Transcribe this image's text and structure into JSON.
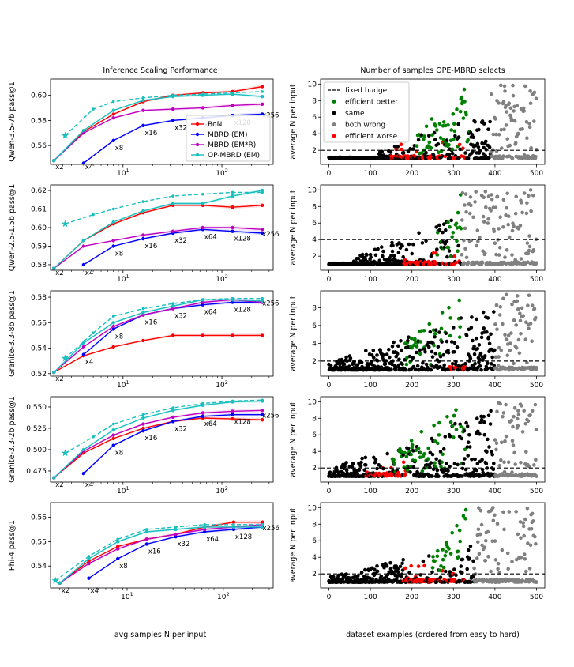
{
  "figure": {
    "left_title": "Inference Scaling Performance",
    "right_title": "Number of samples OPE-MBRD selects",
    "left_xlabel": "avg samples N per input",
    "right_xlabel": "dataset examples (ordered from easy to hard)",
    "right_ylabel": "average N per input"
  },
  "colors": {
    "bon": "#ff0000",
    "mbrd_em": "#0000ff",
    "mbrd_emr": "#c000c0",
    "op_mbrd": "#17bfbf",
    "green": "#008000",
    "black": "#000000",
    "gray": "#808080",
    "red": "#ff0000"
  },
  "legend_left": [
    "BoN",
    "MBRD (EM)",
    "MBRD (EM*R)",
    "OP-MBRD (EM)"
  ],
  "legend_right": [
    "fixed budget",
    "efficient better",
    "same",
    "both wrong",
    "efficient worse"
  ],
  "chart_data": [
    {
      "type": "line",
      "ylabel": "Qwen-3.5-7b pass@1",
      "ylim": [
        0.545,
        0.613
      ],
      "yticks": [
        0.56,
        0.58,
        0.6
      ],
      "xticks": [
        "10^1",
        "10^2"
      ],
      "series": [
        {
          "name": "BoN",
          "x": [
            2,
            4,
            8,
            16,
            32,
            64,
            128,
            256
          ],
          "values": [
            0.548,
            0.571,
            0.585,
            0.595,
            0.6,
            0.602,
            0.603,
            0.607
          ]
        },
        {
          "name": "MBRD (EM)",
          "x": [
            4,
            8,
            16,
            32,
            64,
            128,
            256
          ],
          "values": [
            0.546,
            0.564,
            0.576,
            0.58,
            0.582,
            0.584,
            0.585
          ]
        },
        {
          "name": "MBRD (EM*R)",
          "x": [
            2,
            4,
            8,
            16,
            32,
            64,
            128,
            256
          ],
          "values": [
            0.548,
            0.57,
            0.582,
            0.588,
            0.589,
            0.59,
            0.592,
            0.593
          ]
        },
        {
          "name": "OP-MBRD (EM)",
          "x": [
            2,
            4,
            8,
            16,
            32,
            64,
            128,
            256
          ],
          "values": [
            0.548,
            0.572,
            0.588,
            0.596,
            0.599,
            0.6,
            0.601,
            0.599
          ]
        },
        {
          "name": "OP-MBRD (EM) dashed",
          "x": [
            2.6,
            5,
            8,
            16,
            32,
            64,
            128,
            256
          ],
          "values": [
            0.568,
            0.589,
            0.595,
            0.598,
            0.6,
            0.601,
            0.602,
            0.603
          ]
        }
      ],
      "annotations": [
        "x2",
        "x4",
        "x8",
        "x16",
        "x32",
        "x64",
        "x128",
        "x256"
      ]
    },
    {
      "type": "line",
      "ylabel": "Qwen-2.5-1.5b pass@1",
      "ylim": [
        0.577,
        0.623
      ],
      "yticks": [
        0.58,
        0.59,
        0.6,
        0.61,
        0.62
      ],
      "xticks": [
        "10^1",
        "10^2"
      ],
      "series": [
        {
          "name": "BoN",
          "x": [
            2,
            4,
            8,
            16,
            32,
            64,
            128,
            256
          ],
          "values": [
            0.578,
            0.593,
            0.602,
            0.608,
            0.612,
            0.612,
            0.611,
            0.612
          ]
        },
        {
          "name": "MBRD (EM)",
          "x": [
            4,
            8,
            16,
            32,
            64,
            128,
            256
          ],
          "values": [
            0.58,
            0.59,
            0.594,
            0.597,
            0.599,
            0.598,
            0.597
          ]
        },
        {
          "name": "MBRD (EM*R)",
          "x": [
            2,
            4,
            8,
            16,
            32,
            64,
            128,
            256
          ],
          "values": [
            0.578,
            0.59,
            0.593,
            0.596,
            0.598,
            0.6,
            0.6,
            0.599
          ]
        },
        {
          "name": "OP-MBRD (EM)",
          "x": [
            2,
            4,
            8,
            16,
            32,
            64,
            128,
            256
          ],
          "values": [
            0.578,
            0.593,
            0.603,
            0.609,
            0.613,
            0.613,
            0.617,
            0.62
          ]
        },
        {
          "name": "OP-MBRD (EM) dashed",
          "x": [
            2.6,
            5,
            8,
            16,
            32,
            64,
            128,
            256
          ],
          "values": [
            0.602,
            0.607,
            0.61,
            0.614,
            0.617,
            0.618,
            0.619,
            0.619
          ]
        }
      ],
      "annotations": [
        "x2",
        "x4",
        "x8",
        "x16",
        "x32",
        "x64",
        "x128",
        "x256"
      ]
    },
    {
      "type": "line",
      "ylabel": "Granite-3.3-8b pass@1",
      "ylim": [
        0.518,
        0.585
      ],
      "yticks": [
        0.52,
        0.54,
        0.56,
        0.58
      ],
      "xticks": [
        "10^1",
        "10^2"
      ],
      "series": [
        {
          "name": "BoN",
          "x": [
            2,
            4,
            8,
            16,
            32,
            64,
            128,
            256
          ],
          "values": [
            0.521,
            0.534,
            0.541,
            0.546,
            0.55,
            0.55,
            0.55,
            0.55
          ]
        },
        {
          "name": "MBRD (EM)",
          "x": [
            4,
            8,
            16,
            32,
            64,
            128,
            256
          ],
          "values": [
            0.535,
            0.555,
            0.566,
            0.571,
            0.574,
            0.576,
            0.576
          ]
        },
        {
          "name": "MBRD (EM*R)",
          "x": [
            2,
            4,
            8,
            16,
            32,
            64,
            128,
            256
          ],
          "values": [
            0.521,
            0.541,
            0.557,
            0.566,
            0.571,
            0.576,
            0.578,
            0.576
          ]
        },
        {
          "name": "OP-MBRD (EM)",
          "x": [
            2,
            4,
            8,
            16,
            32,
            64,
            128,
            256
          ],
          "values": [
            0.521,
            0.544,
            0.56,
            0.568,
            0.573,
            0.578,
            0.578,
            0.577
          ]
        },
        {
          "name": "OP-MBRD (EM) dashed",
          "x": [
            2.6,
            5,
            8,
            16,
            32,
            64,
            128,
            256
          ],
          "values": [
            0.532,
            0.552,
            0.565,
            0.571,
            0.575,
            0.578,
            0.579,
            0.579
          ]
        }
      ],
      "annotations": [
        "x2",
        "x4",
        "x8",
        "x16",
        "x32",
        "x64",
        "x128",
        "x256"
      ]
    },
    {
      "type": "line",
      "ylabel": "Granite-3.3-2b pass@1",
      "ylim": [
        0.462,
        0.562
      ],
      "yticks": [
        0.475,
        0.5,
        0.525,
        0.55
      ],
      "xticks": [
        "10^1",
        "10^2"
      ],
      "series": [
        {
          "name": "BoN",
          "x": [
            2,
            4,
            8,
            16,
            32,
            64,
            128,
            256
          ],
          "values": [
            0.467,
            0.496,
            0.513,
            0.525,
            0.533,
            0.537,
            0.536,
            0.535
          ]
        },
        {
          "name": "MBRD (EM)",
          "x": [
            4,
            8,
            16,
            32,
            64,
            128,
            256
          ],
          "values": [
            0.472,
            0.505,
            0.522,
            0.533,
            0.539,
            0.541,
            0.541
          ]
        },
        {
          "name": "MBRD (EM*R)",
          "x": [
            2,
            4,
            8,
            16,
            32,
            64,
            128,
            256
          ],
          "values": [
            0.467,
            0.498,
            0.517,
            0.53,
            0.538,
            0.543,
            0.545,
            0.546
          ]
        },
        {
          "name": "OP-MBRD (EM)",
          "x": [
            2,
            4,
            8,
            16,
            32,
            64,
            128,
            256
          ],
          "values": [
            0.467,
            0.5,
            0.523,
            0.537,
            0.546,
            0.552,
            0.556,
            0.557
          ]
        },
        {
          "name": "OP-MBRD (EM) dashed",
          "x": [
            2.6,
            5,
            8,
            16,
            32,
            64,
            128,
            256
          ],
          "values": [
            0.496,
            0.515,
            0.53,
            0.541,
            0.549,
            0.554,
            0.557,
            0.558
          ]
        }
      ],
      "annotations": [
        "x2",
        "x4",
        "x8",
        "x16",
        "x32",
        "x64",
        "x128",
        "x256"
      ]
    },
    {
      "type": "line",
      "ylabel": "Phi-4 pass@1",
      "ylim": [
        0.531,
        0.566
      ],
      "yticks": [
        0.54,
        0.55,
        0.56
      ],
      "xticks": [
        "10^1",
        "10^2"
      ],
      "series": [
        {
          "name": "BoN",
          "x": [
            2,
            4,
            8,
            16,
            32,
            64,
            128,
            256
          ],
          "values": [
            0.533,
            0.542,
            0.548,
            0.551,
            0.553,
            0.556,
            0.558,
            0.558
          ]
        },
        {
          "name": "MBRD (EM)",
          "x": [
            4,
            8,
            16,
            32,
            64,
            128,
            256
          ],
          "values": [
            0.535,
            0.543,
            0.549,
            0.552,
            0.554,
            0.555,
            0.556
          ]
        },
        {
          "name": "MBRD (EM*R)",
          "x": [
            2,
            4,
            8,
            16,
            32,
            64,
            128,
            256
          ],
          "values": [
            0.533,
            0.541,
            0.547,
            0.551,
            0.553,
            0.555,
            0.556,
            0.557
          ]
        },
        {
          "name": "OP-MBRD (EM)",
          "x": [
            2,
            4,
            8,
            16,
            32,
            64,
            128,
            256
          ],
          "values": [
            0.533,
            0.543,
            0.55,
            0.554,
            0.555,
            0.556,
            0.556,
            0.556
          ]
        },
        {
          "name": "OP-MBRD (EM) dashed",
          "x": [
            1.8,
            4,
            8,
            16,
            32,
            64,
            128,
            256
          ],
          "values": [
            0.534,
            0.544,
            0.551,
            0.555,
            0.556,
            0.557,
            0.557,
            0.557
          ]
        }
      ],
      "annotations": [
        "x2",
        "x4",
        "x8",
        "x16",
        "x32",
        "x64",
        "x128",
        "x256"
      ]
    },
    {
      "type": "scatter",
      "ylabel": "average N per input",
      "xlim": [
        -20,
        520
      ],
      "ylim": [
        0.3,
        10.6
      ],
      "yticks": [
        2,
        4,
        6,
        8,
        10
      ],
      "xticks": [
        0,
        100,
        200,
        300,
        400,
        500
      ],
      "fixed_budget": 2,
      "cap": 10,
      "seed": 11,
      "pattern": {
        "same_start": 120,
        "red_range": [
          150,
          330
        ],
        "green_range": [
          210,
          340
        ],
        "gray_start": 390,
        "spread": 1.0
      }
    },
    {
      "type": "scatter",
      "ylabel": "average N per input",
      "xlim": [
        -20,
        520
      ],
      "ylim": [
        0.3,
        10.6
      ],
      "yticks": [
        2,
        4,
        6,
        8,
        10
      ],
      "xticks": [
        0,
        100,
        200,
        300,
        400,
        500
      ],
      "fixed_budget": 4,
      "cap": 10,
      "seed": 23,
      "pattern": {
        "same_start": 60,
        "red_range": [
          180,
          330
        ],
        "green_range": [
          250,
          320
        ],
        "gray_start": 320,
        "spread": 1.0
      }
    },
    {
      "type": "scatter",
      "ylabel": "average N per input",
      "xlim": [
        -20,
        520
      ],
      "ylim": [
        0.3,
        9.9
      ],
      "yticks": [
        2,
        4,
        6,
        8
      ],
      "xticks": [
        0,
        100,
        200,
        300,
        400,
        500
      ],
      "fixed_budget": 2,
      "cap": 9.5,
      "seed": 37,
      "pattern": {
        "same_start": 0,
        "red_range": [
          290,
          330
        ],
        "green_range": [
          180,
          320
        ],
        "gray_start": 400,
        "spread": 0.8
      }
    },
    {
      "type": "scatter",
      "ylabel": "average N per input",
      "xlim": [
        -20,
        520
      ],
      "ylim": [
        0.3,
        10.6
      ],
      "yticks": [
        2,
        4,
        6,
        8,
        10
      ],
      "xticks": [
        0,
        100,
        200,
        300,
        400,
        500
      ],
      "fixed_budget": 2,
      "cap": 10,
      "seed": 53,
      "pattern": {
        "same_start": 0,
        "red_range": [
          90,
          200
        ],
        "green_range": [
          150,
          330
        ],
        "gray_start": 400,
        "spread": 0.9
      }
    },
    {
      "type": "scatter",
      "ylabel": "average N per input",
      "xlim": [
        -20,
        520
      ],
      "ylim": [
        0.3,
        10.6
      ],
      "yticks": [
        2,
        4,
        6,
        8,
        10
      ],
      "xticks": [
        0,
        100,
        200,
        300,
        400,
        500
      ],
      "fixed_budget": 2,
      "cap": 10,
      "seed": 71,
      "pattern": {
        "same_start": 0,
        "red_range": [
          180,
          330
        ],
        "green_range": [
          250,
          330
        ],
        "gray_start": 350,
        "spread": 0.6
      }
    }
  ]
}
